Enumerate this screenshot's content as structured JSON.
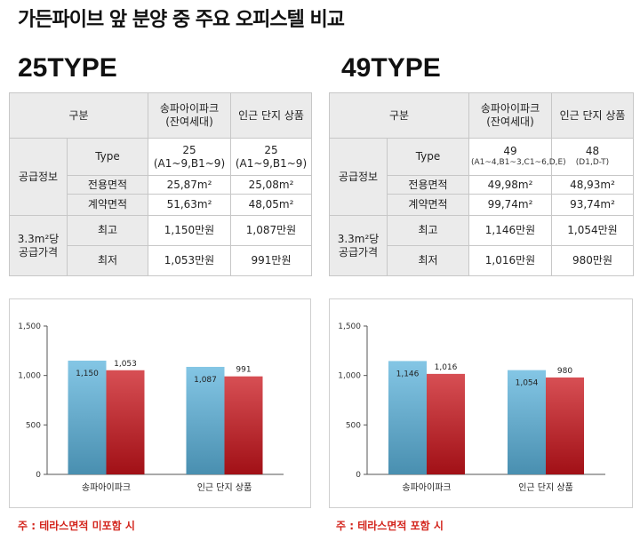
{
  "page_title": "가든파이브 앞 분양 중 주요 오피스텔 비교",
  "panels": [
    {
      "type_title": "25TYPE",
      "table": {
        "header": {
          "group": "구분",
          "col1_line1": "송파아이파크",
          "col1_line2": "(잔여세대)",
          "col2": "인근 단지 상품"
        },
        "supply_label": "공급정보",
        "price_label_line1": "3.3m²당",
        "price_label_line2": "공급가격",
        "rows": [
          {
            "label": "Type",
            "v1_line1": "25",
            "v1_line2": "(A1~9,B1~9)",
            "v2_line1": "25",
            "v2_line2": "(A1~9,B1~9)"
          },
          {
            "label": "전용면적",
            "v1": "25,87m²",
            "v2": "25,08m²"
          },
          {
            "label": "계약면적",
            "v1": "51,63m²",
            "v2": "48,05m²"
          },
          {
            "label": "최고",
            "v1": "1,150만원",
            "v2": "1,087만원"
          },
          {
            "label": "최저",
            "v1": "1,053만원",
            "v2": "991만원"
          }
        ]
      },
      "footnote": "주 : 테라스면적 미포함 시"
    },
    {
      "type_title": "49TYPE",
      "table": {
        "header": {
          "group": "구분",
          "col1_line1": "송파아이파크",
          "col1_line2": "(잔여세대)",
          "col2": "인근 단지 상품"
        },
        "supply_label": "공급정보",
        "price_label_line1": "3.3m²당",
        "price_label_line2": "공급가격",
        "rows": [
          {
            "label": "Type",
            "v1_line1": "49",
            "v1_line2": "(A1~4,B1~3,C1~6,D,E)",
            "v2_line1": "48",
            "v2_line2": "(D1,D-T)"
          },
          {
            "label": "전용면적",
            "v1": "49,98m²",
            "v2": "48,93m²"
          },
          {
            "label": "계약면적",
            "v1": "99,74m²",
            "v2": "93,74m²"
          },
          {
            "label": "최고",
            "v1": "1,146만원",
            "v2": "1,054만원"
          },
          {
            "label": "최저",
            "v1": "1,016만원",
            "v2": "980만원"
          }
        ]
      },
      "footnote": "주 : 테라스면적 포함 시"
    }
  ],
  "chart_data": [
    {
      "type": "bar",
      "categories": [
        "송파아이파크",
        "인근 단지 상품"
      ],
      "series": [
        {
          "values": [
            1150,
            1087
          ],
          "labels": [
            "1,150",
            "1,087"
          ],
          "color": "#5bb3dc"
        },
        {
          "values": [
            1053,
            991
          ],
          "labels": [
            "1,053",
            "991"
          ],
          "color": "#c9141b"
        }
      ],
      "ylim": [
        0,
        1500
      ],
      "yticks": [
        0,
        500,
        1000,
        1500
      ],
      "ytick_labels": [
        "0",
        "500",
        "1,000",
        "1,500"
      ],
      "grid": false
    },
    {
      "type": "bar",
      "categories": [
        "송파아이파크",
        "인근 단지 상품"
      ],
      "series": [
        {
          "values": [
            1146,
            1054
          ],
          "labels": [
            "1,146",
            "1,054"
          ],
          "color": "#5bb3dc"
        },
        {
          "values": [
            1016,
            980
          ],
          "labels": [
            "1,016",
            "980"
          ],
          "color": "#c9141b"
        }
      ],
      "ylim": [
        0,
        1500
      ],
      "yticks": [
        0,
        500,
        1000,
        1500
      ],
      "ytick_labels": [
        "0",
        "500",
        "1,000",
        "1,500"
      ],
      "grid": false
    }
  ]
}
